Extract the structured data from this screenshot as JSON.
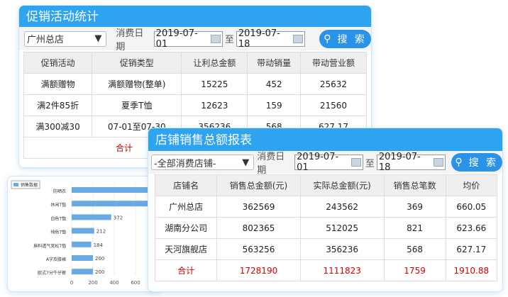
{
  "promo": {
    "title": "促销活动统计",
    "store_select": "广州总店",
    "date_label": "消费日期",
    "date_from": "2019-07-01",
    "to_label": "至",
    "date_to": "2019-07-18",
    "search_label": "搜 索",
    "columns": [
      "促销活动",
      "促销类型",
      "让利总金额",
      "带动销量",
      "带动营业额"
    ],
    "rows": [
      [
        "满额赠物",
        "满额赠物(整单)",
        "15225",
        "452",
        "25632"
      ],
      [
        "满2件85折",
        "夏季T恤",
        "12623",
        "159",
        "21560"
      ],
      [
        "满300减30",
        "07-01至07-30",
        "356236",
        "568",
        "627.17"
      ]
    ],
    "total_label": "合计"
  },
  "store": {
    "title": "店铺销售总额报表",
    "store_select": "-全部消费店铺-",
    "date_label": "消费日期",
    "date_from": "2019-07-01",
    "to_label": "至",
    "date_to": "2019-07-18",
    "search_label": "搜 索",
    "columns": [
      "店铺名",
      "销售总金额(元)",
      "实际总金额(元)",
      "销售总笔数",
      "均价"
    ],
    "rows": [
      [
        "广州总店",
        "362569",
        "243562",
        "369",
        "660.05"
      ],
      [
        "湖南分公司",
        "802365",
        "512025",
        "821",
        "623.66"
      ],
      [
        "天河旗舰店",
        "563256",
        "356236",
        "568",
        "627.17"
      ]
    ],
    "total": [
      "合计",
      "1728190",
      "1111823",
      "1759",
      "1910.88"
    ]
  },
  "chart_data": {
    "type": "bar",
    "orientation": "horizontal",
    "legend": "销售数据",
    "legend_position": "top-left",
    "categories": [
      "防晒衣",
      "休闲T恤",
      "白色T恤",
      "纯色T恤",
      "麻料透气宽松T恤",
      "A字及膝裙",
      "欧式7分牛仔裤"
    ],
    "values": [
      800,
      800,
      372,
      212,
      184,
      200,
      200
    ],
    "x_ticks": [
      "0",
      "200",
      "400",
      "600"
    ],
    "bar_color": "#6aaae4",
    "grid": true
  }
}
